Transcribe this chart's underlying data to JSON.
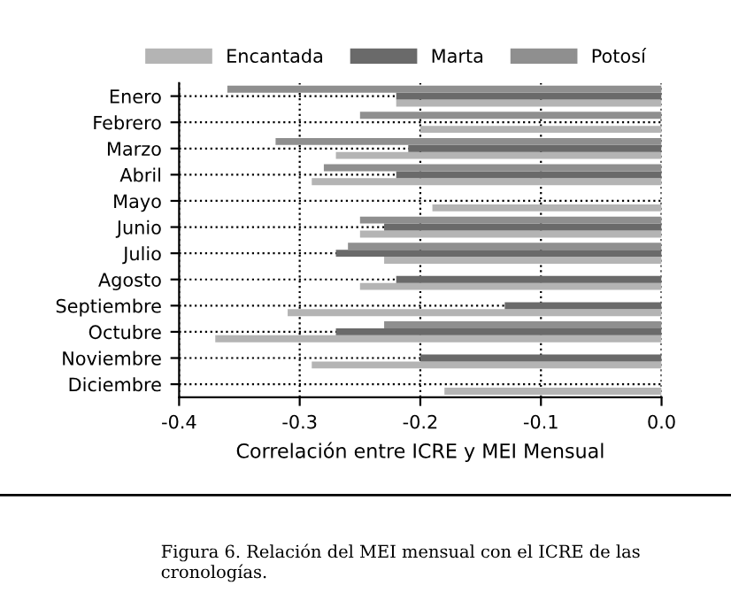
{
  "chart_data": {
    "type": "bar",
    "orientation": "horizontal",
    "categories": [
      "Enero",
      "Febrero",
      "Marzo",
      "Abril",
      "Mayo",
      "Junio",
      "Julio",
      "Agosto",
      "Septiembre",
      "Octubre",
      "Noviembre",
      "Diciembre"
    ],
    "series": [
      {
        "name": "Encantada",
        "color": "#b4b4b4",
        "values": [
          -0.22,
          -0.2,
          -0.27,
          -0.29,
          -0.19,
          -0.25,
          -0.23,
          -0.25,
          -0.31,
          -0.37,
          -0.29,
          -0.18
        ]
      },
      {
        "name": "Marta",
        "color": "#6a6a6a",
        "values": [
          -0.22,
          0,
          -0.21,
          -0.22,
          0,
          -0.23,
          -0.27,
          -0.22,
          -0.13,
          -0.27,
          -0.2,
          0
        ]
      },
      {
        "name": "Potosí",
        "color": "#8f8f8f",
        "values": [
          -0.36,
          -0.25,
          -0.32,
          -0.28,
          0,
          -0.25,
          -0.26,
          0,
          0,
          -0.23,
          0,
          0
        ]
      }
    ],
    "xlim": [
      -0.4,
      0.0
    ],
    "xticks": [
      -0.4,
      -0.3,
      -0.2,
      -0.1,
      {
        "value": 0,
        "label": "0.0"
      }
    ],
    "xlabel": "Correlación entre ICRE y MEI Mensual",
    "grid": true,
    "legend": "top",
    "annotations": [
      "Figura 6. Relación del MEI mensual con el ICRE de las cronologías."
    ]
  }
}
